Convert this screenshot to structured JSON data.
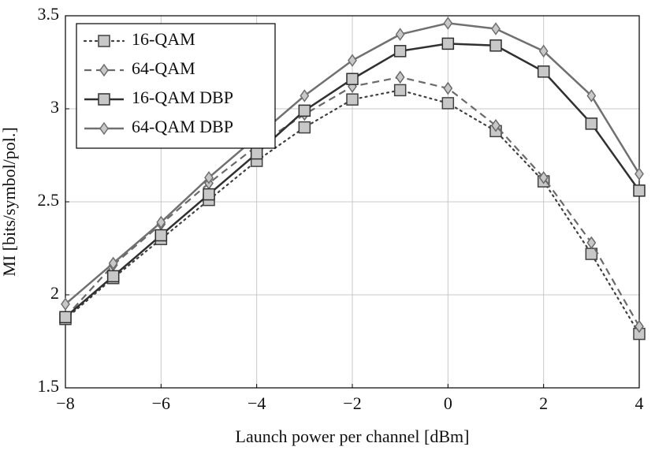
{
  "chart_data": {
    "type": "line",
    "xlabel": "Launch power per channel [dBm]",
    "ylabel": "MI [bits/symbol/pol.]",
    "x": [
      -8,
      -7,
      -6,
      -5,
      -4,
      -3,
      -2,
      -1,
      0,
      1,
      2,
      3,
      4
    ],
    "xlim": [
      -8,
      4
    ],
    "xticks": [
      {
        "value": -8,
        "label": "−8"
      },
      {
        "value": -6,
        "label": "−6"
      },
      {
        "value": -4,
        "label": "−4"
      },
      {
        "value": -2,
        "label": "−2"
      },
      0,
      2,
      4
    ],
    "ylim": [
      1.5,
      3.5
    ],
    "yticks": [
      1.5,
      2,
      2.5,
      3,
      3.5
    ],
    "grid": true,
    "legend": "upper left",
    "series": [
      {
        "name": "16-QAM",
        "color": "#404040",
        "dash": "dotted",
        "marker": "square",
        "values": [
          1.87,
          2.09,
          2.3,
          2.51,
          2.72,
          2.9,
          3.05,
          3.1,
          3.03,
          2.88,
          2.61,
          2.22,
          1.79
        ]
      },
      {
        "name": "64-QAM",
        "color": "#6a6a6a",
        "dash": "dashed",
        "marker": "diamond",
        "values": [
          1.88,
          2.16,
          2.38,
          2.6,
          2.8,
          2.97,
          3.12,
          3.17,
          3.11,
          2.91,
          2.63,
          2.28,
          1.83
        ]
      },
      {
        "name": "16-QAM DBP",
        "color": "#303030",
        "dash": "solid",
        "marker": "square",
        "values": [
          1.88,
          2.1,
          2.32,
          2.54,
          2.76,
          2.99,
          3.16,
          3.31,
          3.35,
          3.34,
          3.2,
          2.92,
          2.56
        ]
      },
      {
        "name": "64-QAM DBP",
        "color": "#707070",
        "dash": "solid",
        "marker": "diamond",
        "values": [
          1.95,
          2.17,
          2.39,
          2.63,
          2.85,
          3.07,
          3.26,
          3.4,
          3.46,
          3.43,
          3.31,
          3.07,
          2.65
        ]
      }
    ]
  }
}
